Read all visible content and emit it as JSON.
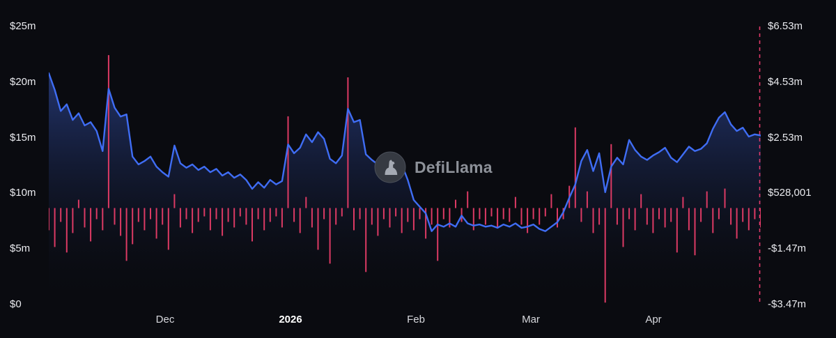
{
  "watermark": {
    "label": "DefiLlama"
  },
  "theme": {
    "background": "#0a0b10",
    "line_color": "#3f6df4",
    "area_fill_top": "rgba(56,88,190,0.55)",
    "area_fill_bottom": "rgba(10,12,20,0)",
    "bar_color": "#dc3a64",
    "marker_line_color": "#e23a6a",
    "axis_text_color": "#e9eaee",
    "x_axis_text_color": "#d7d8dd",
    "year_label_color": "#ffffff",
    "watermark_text_color": "#8d9199"
  },
  "chart_data": {
    "type": "line+bar",
    "title": "",
    "xlabel": "",
    "ylabel": "",
    "grid": false,
    "legend": false,
    "left_axis": {
      "ticks": [
        "$25m",
        "$20m",
        "$15m",
        "$10m",
        "$5m",
        "$0"
      ],
      "min_millions": 0,
      "max_millions": 25
    },
    "right_axis": {
      "ticks": [
        "$6.53m",
        "$4.53m",
        "$2.53m",
        "$528,001",
        "-$1.47m",
        "-$3.47m"
      ],
      "min_millions": -3.47,
      "max_millions": 6.53
    },
    "x_axis": {
      "ticks": [
        {
          "label": "Dec",
          "bold": false
        },
        {
          "label": "2026",
          "bold": true
        },
        {
          "label": "Feb",
          "bold": false
        },
        {
          "label": "Mar",
          "bold": false
        },
        {
          "label": "Apr",
          "bold": false
        }
      ]
    },
    "series": [
      {
        "name": "line",
        "type": "area-line",
        "axis": "left",
        "values_millions": [
          20.8,
          19.3,
          17.4,
          18,
          16.6,
          17.2,
          16.1,
          16.4,
          15.6,
          13.8,
          19.4,
          17.7,
          16.9,
          17.1,
          13.3,
          12.6,
          12.9,
          13.3,
          12.4,
          11.9,
          11.5,
          14.3,
          12.7,
          12.3,
          12.6,
          12.1,
          12.4,
          11.9,
          12.2,
          11.6,
          11.9,
          11.4,
          11.7,
          11.2,
          10.4,
          11,
          10.5,
          11.2,
          10.8,
          11.1,
          14.4,
          13.6,
          14.1,
          15.3,
          14.6,
          15.5,
          14.9,
          13.1,
          12.7,
          13.4,
          17.6,
          16.4,
          16.6,
          13.5,
          13,
          12.6,
          13,
          12.7,
          12.4,
          12.6,
          11.2,
          9.4,
          8.8,
          8.2,
          6.6,
          7.2,
          7,
          7.3,
          7,
          8,
          7.3,
          7.1,
          7.2,
          7,
          7.1,
          6.9,
          7.2,
          7,
          7.3,
          6.9,
          7,
          7.2,
          6.8,
          6.6,
          7,
          7.4,
          8.3,
          9.6,
          10.8,
          12.9,
          13.9,
          12,
          13.6,
          10.1,
          12.4,
          13.2,
          12.6,
          14.8,
          13.9,
          13.3,
          13,
          13.4,
          13.7,
          14.1,
          13.2,
          12.8,
          13.5,
          14.2,
          13.8,
          14,
          14.5,
          15.8,
          16.8,
          17.3,
          16.2,
          15.6,
          15.9,
          15.1,
          15.3,
          15.2
        ]
      },
      {
        "name": "bars",
        "type": "bar",
        "axis": "right",
        "values_millions": [
          -0.8,
          -1.4,
          -0.5,
          -1.6,
          -0.9,
          0.3,
          -0.7,
          -1.2,
          -0.4,
          -0.8,
          5.5,
          -0.6,
          -1,
          -1.9,
          -1.3,
          -0.5,
          -0.8,
          -0.4,
          -1.1,
          -0.6,
          -1.5,
          0.5,
          -0.7,
          -0.4,
          -0.9,
          -0.5,
          -0.3,
          -0.8,
          -0.4,
          -1,
          -0.5,
          -0.7,
          -0.3,
          -0.6,
          -1.2,
          -0.4,
          -0.8,
          -0.5,
          -0.3,
          -0.7,
          3.3,
          -0.5,
          -0.9,
          0.4,
          -0.7,
          -1.5,
          -0.4,
          -2,
          -0.6,
          -0.3,
          4.7,
          -0.8,
          -0.4,
          -2.3,
          -0.6,
          -1,
          -0.4,
          -0.7,
          -0.3,
          -0.9,
          -0.5,
          -0.8,
          -0.4,
          -1.1,
          -0.6,
          -1.9,
          -0.4,
          -0.7,
          0.3,
          -0.5,
          0.6,
          -0.8,
          -0.4,
          -0.6,
          -0.3,
          -0.7,
          -0.4,
          -0.5,
          0.4,
          -0.6,
          -0.9,
          -0.4,
          -0.6,
          -0.3,
          0.5,
          -0.7,
          -0.4,
          0.8,
          2.9,
          -0.5,
          0.6,
          -0.9,
          -0.6,
          -3.4,
          2.3,
          -0.6,
          -1.4,
          -0.4,
          -0.8,
          0.5,
          -0.6,
          -0.9,
          -0.4,
          -0.7,
          -0.5,
          -1.6,
          0.4,
          -0.8,
          -1.7,
          -0.5,
          0.6,
          -0.9,
          -0.4,
          0.7,
          -0.6,
          -1.1,
          -0.5,
          -0.8,
          -0.4,
          -0.7
        ]
      }
    ],
    "marker": {
      "type": "dashed-vertical-line",
      "position": "right-edge"
    }
  }
}
